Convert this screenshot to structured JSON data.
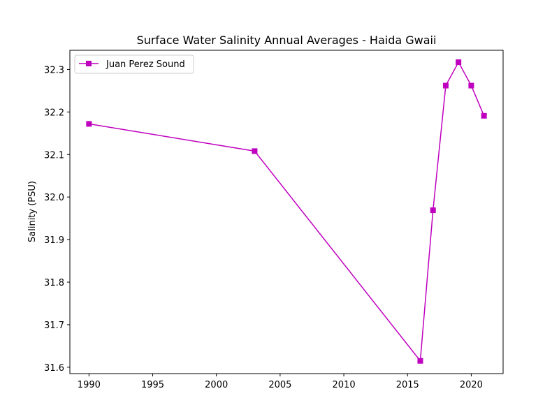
{
  "chart_data": {
    "type": "line",
    "title": "Surface Water Salinity Annual Averages - Haida Gwaii",
    "xlabel": "",
    "ylabel": "Salinity (PSU)",
    "xlim": [
      1988.5,
      2022.5
    ],
    "ylim": [
      31.585,
      32.345
    ],
    "xticks": [
      1990,
      1995,
      2000,
      2005,
      2010,
      2015,
      2020
    ],
    "yticks": [
      31.6,
      31.7,
      31.8,
      31.9,
      32.0,
      32.1,
      32.2,
      32.3
    ],
    "ytick_labels": [
      "31.6",
      "31.7",
      "31.8",
      "31.9",
      "32.0",
      "32.1",
      "32.2",
      "32.3"
    ],
    "grid": false,
    "legend_position": "top-left",
    "series": [
      {
        "name": "Juan Perez Sound",
        "color": "#bf00bf",
        "marker": "square",
        "x": [
          1990,
          2003,
          2016,
          2017,
          2018,
          2019,
          2020,
          2021
        ],
        "y": [
          32.172,
          32.108,
          31.615,
          31.969,
          32.262,
          32.317,
          32.262,
          32.191
        ]
      }
    ]
  }
}
